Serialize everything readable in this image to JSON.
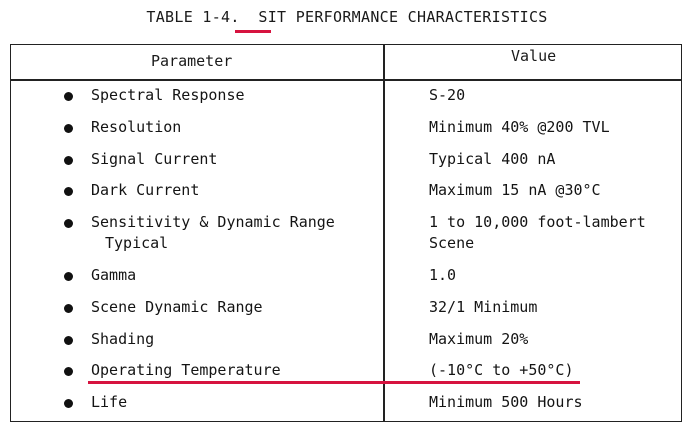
{
  "title": {
    "prefix": "TABLE 1-4.  ",
    "highlight": "SIT",
    "suffix": " PERFORMANCE CHARACTERISTICS"
  },
  "header": {
    "parameter": "Parameter",
    "value": "Value"
  },
  "rows": [
    {
      "parameter": "Spectral Response",
      "parameter_line2": "",
      "value": "S-20",
      "value_line2": ""
    },
    {
      "parameter": "Resolution",
      "parameter_line2": "",
      "value": "Minimum 40% @200 TVL",
      "value_line2": ""
    },
    {
      "parameter": "Signal Current",
      "parameter_line2": "",
      "value": "Typical 400 nA",
      "value_line2": ""
    },
    {
      "parameter": "Dark Current",
      "parameter_line2": "",
      "value": "Maximum 15 nA @30°C",
      "value_line2": ""
    },
    {
      "parameter": "Sensitivity & Dynamic Range",
      "parameter_line2": "Typical",
      "value": "1 to 10,000 foot-lambert",
      "value_line2": "Scene"
    },
    {
      "parameter": "Gamma",
      "parameter_line2": "",
      "value": "1.0",
      "value_line2": ""
    },
    {
      "parameter": "Scene Dynamic Range",
      "parameter_line2": "",
      "value": "32/1 Minimum",
      "value_line2": ""
    },
    {
      "parameter": "Shading",
      "parameter_line2": "",
      "value": "Maximum 20%",
      "value_line2": ""
    },
    {
      "parameter": "Operating Temperature",
      "parameter_line2": "",
      "value": "(-10°C to +50°C)",
      "value_line2": ""
    },
    {
      "parameter": "Life",
      "parameter_line2": "",
      "value": "Minimum 500 Hours",
      "value_line2": ""
    }
  ],
  "colors": {
    "annotation_red": "#d6133f",
    "ink": "#141414"
  }
}
